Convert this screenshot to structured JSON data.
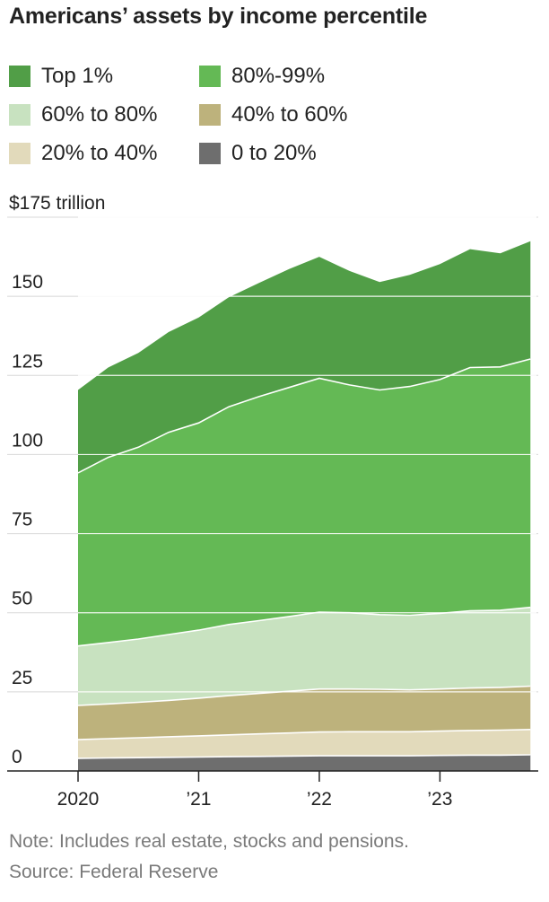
{
  "title": "Americans’ assets by income percentile",
  "note": "Note: Includes real estate, stocks and pensions.",
  "source": "Source: Federal Reserve",
  "chart_data": {
    "type": "area",
    "stacked": true,
    "title": "Americans’ assets by income percentile",
    "y_unit_label": "$175 trillion",
    "ylim": [
      0,
      175
    ],
    "y_ticks": [
      0,
      25,
      50,
      75,
      100,
      125,
      150,
      175
    ],
    "y_tick_labels": [
      "0",
      "25",
      "50",
      "75",
      "100",
      "125",
      "150",
      ""
    ],
    "x_ticks": [
      2020,
      2021,
      2022,
      2023
    ],
    "x_tick_labels": [
      "2020",
      "’21",
      "’22",
      "’23"
    ],
    "grid": true,
    "legend_position": "top",
    "x": [
      2020.0,
      2020.25,
      2020.5,
      2020.75,
      2021.0,
      2021.25,
      2021.5,
      2021.75,
      2022.0,
      2022.25,
      2022.5,
      2022.75,
      2023.0,
      2023.25,
      2023.5,
      2023.75
    ],
    "series": [
      {
        "name": "0 to 20%",
        "color": "#6e6e6e",
        "values": [
          4.0,
          4.1,
          4.2,
          4.3,
          4.4,
          4.5,
          4.6,
          4.7,
          4.8,
          4.8,
          4.8,
          4.8,
          4.9,
          5.0,
          5.0,
          5.1
        ]
      },
      {
        "name": "20% to 40%",
        "color": "#e2dabb",
        "values": [
          5.9,
          6.1,
          6.3,
          6.5,
          6.7,
          6.9,
          7.1,
          7.3,
          7.5,
          7.6,
          7.6,
          7.6,
          7.7,
          7.8,
          7.9,
          8.0
        ]
      },
      {
        "name": "40% to 60%",
        "color": "#bdb27c",
        "values": [
          10.8,
          11.0,
          11.2,
          11.5,
          11.9,
          12.4,
          12.8,
          13.2,
          13.6,
          13.5,
          13.4,
          13.2,
          13.3,
          13.4,
          13.5,
          13.7
        ]
      },
      {
        "name": "60% to 80%",
        "color": "#c8e2c0",
        "values": [
          18.8,
          19.4,
          20.0,
          20.8,
          21.5,
          22.5,
          23.0,
          23.6,
          24.3,
          24.1,
          23.6,
          23.6,
          23.9,
          24.4,
          24.4,
          24.9
        ]
      },
      {
        "name": "80%-99%",
        "color": "#64b955",
        "values": [
          54.7,
          58.5,
          60.6,
          63.9,
          65.5,
          68.8,
          70.8,
          72.4,
          73.9,
          72.0,
          71.0,
          72.3,
          73.9,
          76.9,
          76.9,
          78.5
        ]
      },
      {
        "name": "Top 1%",
        "color": "#519e47",
        "values": [
          26.2,
          28.4,
          29.8,
          31.7,
          33.3,
          34.6,
          35.9,
          37.4,
          38.4,
          36.0,
          34.1,
          35.3,
          36.5,
          37.4,
          35.9,
          37.2
        ]
      }
    ]
  },
  "legend": [
    {
      "label": "Top 1%",
      "color": "#519e47"
    },
    {
      "label": "80%-99%",
      "color": "#64b955"
    },
    {
      "label": "60% to 80%",
      "color": "#c8e2c0"
    },
    {
      "label": "40% to 60%",
      "color": "#bdb27c"
    },
    {
      "label": "20% to 40%",
      "color": "#e2dabb"
    },
    {
      "label": "0 to 20%",
      "color": "#6e6e6e"
    }
  ]
}
